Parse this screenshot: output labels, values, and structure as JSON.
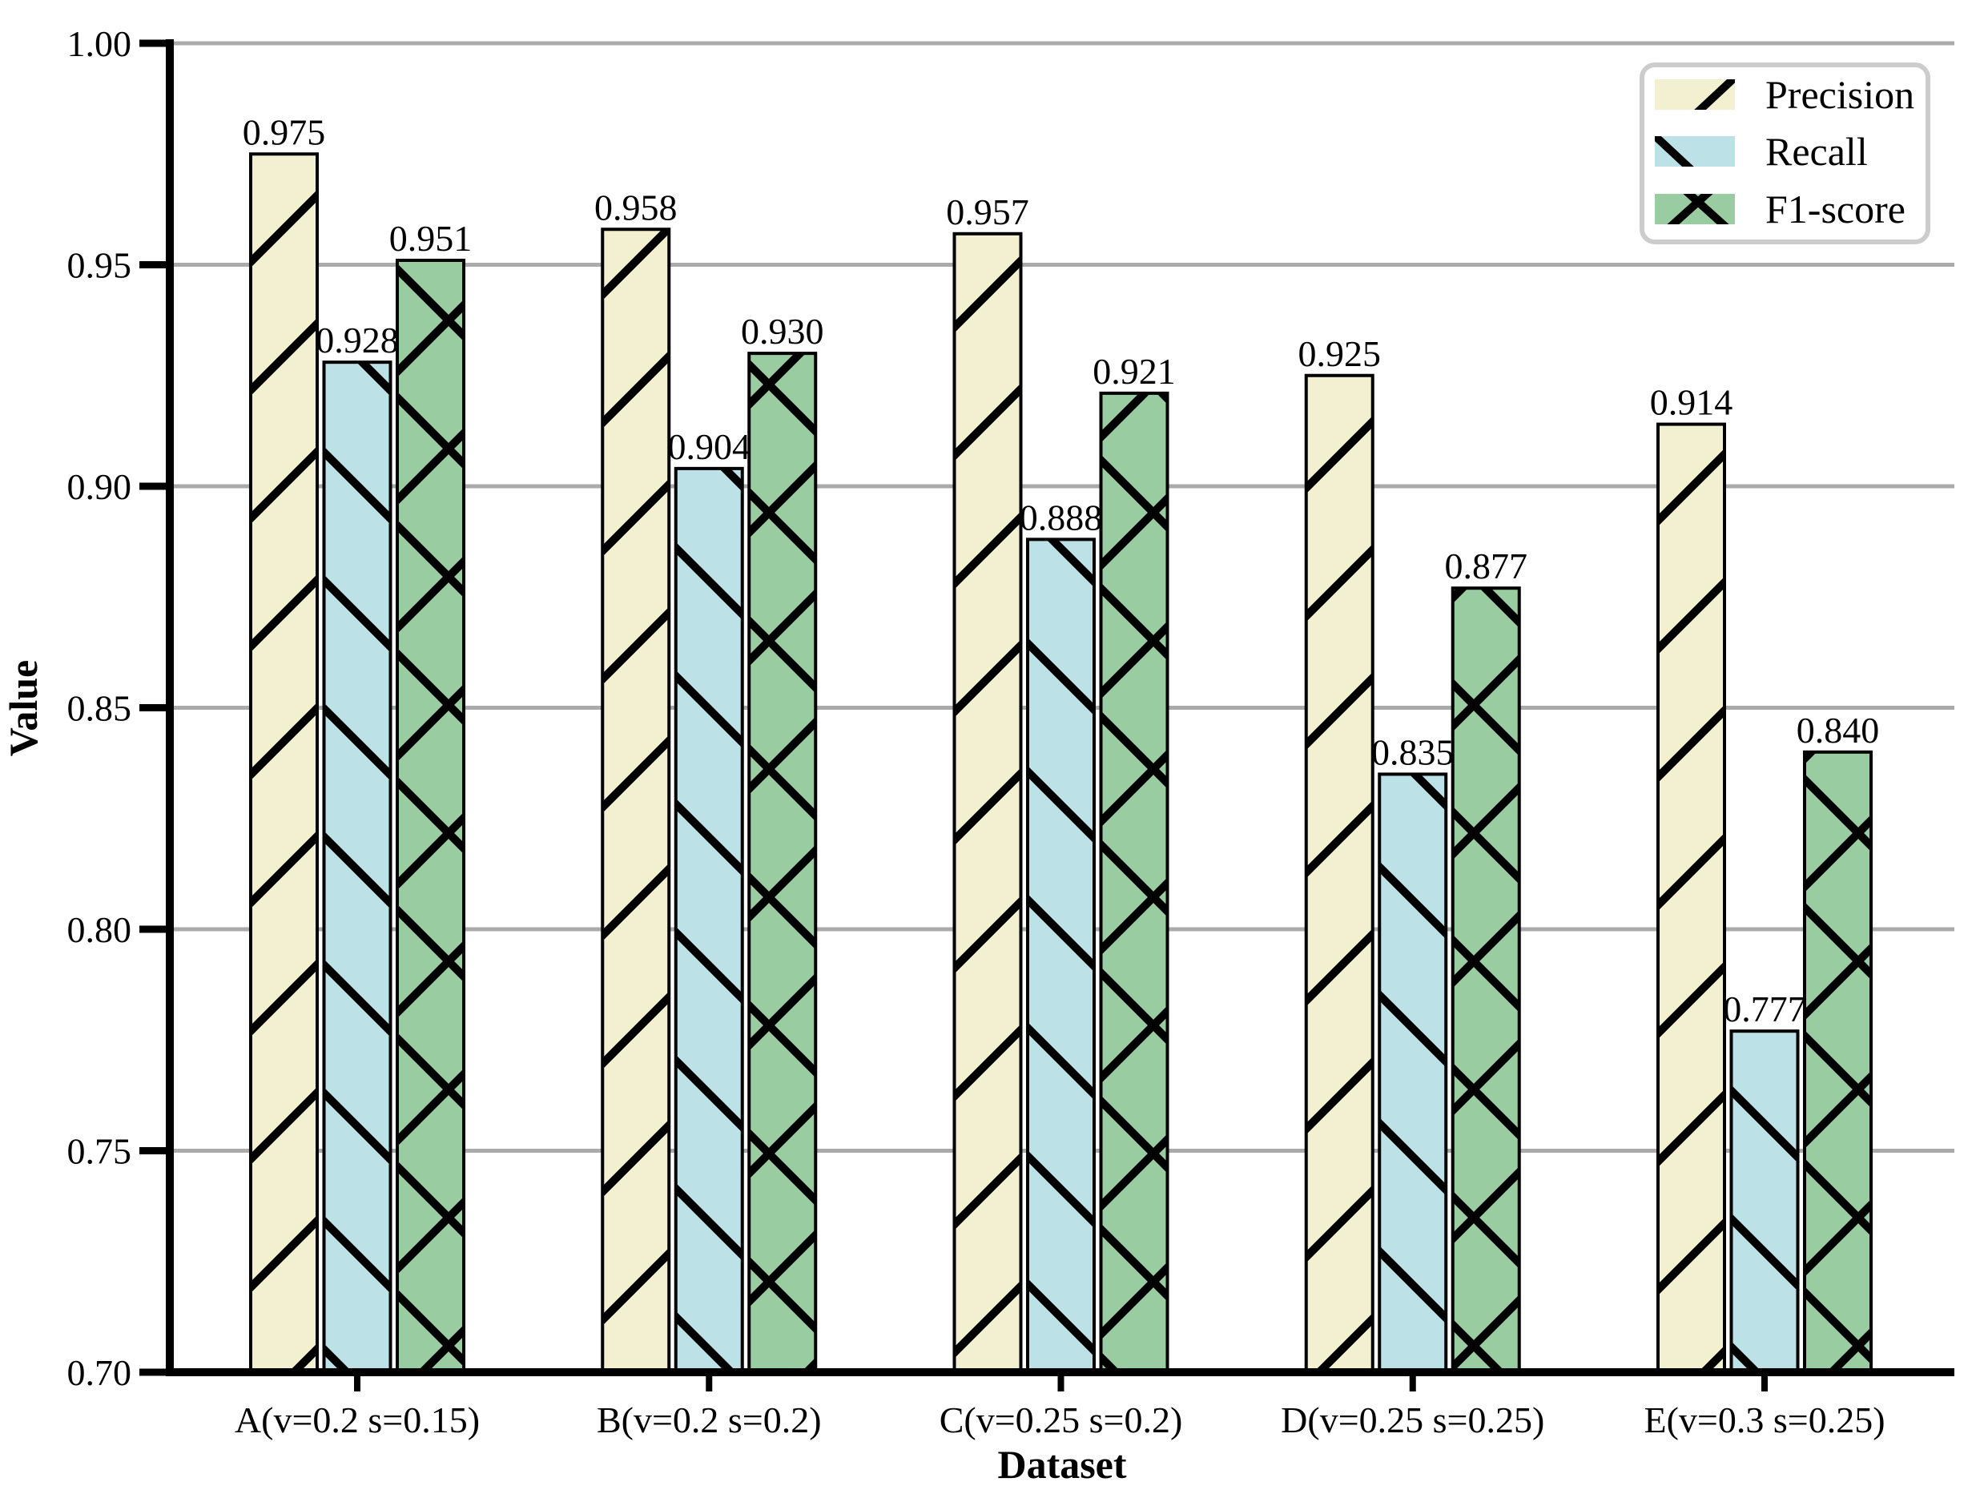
{
  "figure": {
    "background": "#FFFFFF"
  },
  "chart_data": {
    "type": "bar",
    "title": "",
    "xlabel": "Dataset",
    "ylabel": "Value",
    "categories": [
      "A(v=0.2 s=0.15)",
      "B(v=0.2 s=0.2)",
      "C(v=0.25 s=0.2)",
      "D(v=0.25 s=0.25)",
      "E(v=0.3 s=0.25)"
    ],
    "series": [
      {
        "name": "Precision",
        "color": "#F3EFD1",
        "hatch": "/",
        "values": [
          0.975,
          0.958,
          0.957,
          0.925,
          0.914
        ],
        "labels": [
          "0.975",
          "0.958",
          "0.957",
          "0.925",
          "0.914"
        ]
      },
      {
        "name": "Recall",
        "color": "#BCE2E8",
        "hatch": "\\",
        "values": [
          0.928,
          0.904,
          0.888,
          0.835,
          0.777
        ],
        "labels": [
          "0.928",
          "0.904",
          "0.888",
          "0.835",
          "0.777"
        ]
      },
      {
        "name": "F1-score",
        "color": "#9ACCA1",
        "hatch": "x",
        "values": [
          0.951,
          0.93,
          0.921,
          0.877,
          0.84
        ],
        "labels": [
          "0.951",
          "0.930",
          "0.921",
          "0.877",
          "0.840"
        ]
      }
    ],
    "ylim": [
      0.7,
      1.0
    ],
    "yticks": [
      0.7,
      0.75,
      0.8,
      0.85,
      0.9,
      0.95,
      1.0
    ],
    "ytick_labels": [
      "0.70",
      "0.75",
      "0.80",
      "0.85",
      "0.90",
      "0.95",
      "1.00"
    ],
    "grid": true,
    "legend_position": "upper right",
    "value_labels": true,
    "hatch_color": "#000000",
    "axis_color": "#000000",
    "grid_color": "#AAAAAA",
    "legend_border_color": "#CCCCCC"
  }
}
